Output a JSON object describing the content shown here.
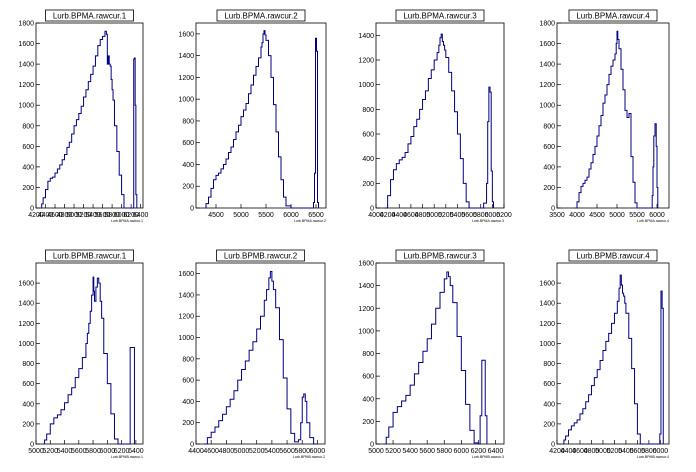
{
  "colors": {
    "line": "#000080",
    "axis": "#000000",
    "background": "#ffffff"
  },
  "chart_data": [
    {
      "type": "line",
      "title": "Lurb.BPMA.rawcur.1",
      "xaxis_label": "Lurb.BPMA.rawcur.1",
      "xlim": [
        4200,
        6450
      ],
      "ylim": [
        0,
        1800
      ],
      "xticks": [
        "4200",
        "4400",
        "4600",
        "4800",
        "5000",
        "5200",
        "5400",
        "5600",
        "5800",
        "6000",
        "6200",
        "6400"
      ],
      "yticks": [
        "0",
        "200",
        "400",
        "600",
        "800",
        "1000",
        "1200",
        "1400",
        "1600",
        "1800"
      ],
      "x": [
        4300,
        4320,
        4350,
        4400,
        4450,
        4500,
        4550,
        4600,
        4650,
        4700,
        4750,
        4800,
        4850,
        4900,
        4950,
        5000,
        5050,
        5100,
        5150,
        5200,
        5250,
        5300,
        5350,
        5400,
        5450,
        5500,
        5550,
        5600,
        5650,
        5680,
        5700,
        5720,
        5740,
        5760,
        5780,
        5800,
        5820,
        5850,
        5900,
        5950,
        6000,
        6050,
        6100,
        6150,
        6200,
        6240,
        6255,
        6270,
        6285,
        6300,
        6320
      ],
      "y": [
        0,
        40,
        100,
        180,
        260,
        290,
        300,
        340,
        380,
        420,
        470,
        520,
        590,
        640,
        720,
        800,
        860,
        920,
        990,
        1080,
        1150,
        1230,
        1300,
        1380,
        1480,
        1580,
        1640,
        1670,
        1720,
        1690,
        1400,
        1480,
        1400,
        1380,
        1250,
        1150,
        1050,
        800,
        550,
        320,
        130,
        0,
        0,
        0,
        0,
        0,
        1450,
        1460,
        1000,
        130,
        0
      ]
    },
    {
      "type": "line",
      "title": "Lurb.BPMA.rawcur.2",
      "xaxis_label": "Lurb.BPMA.rawcur.2",
      "xlim": [
        4100,
        6700
      ],
      "ylim": [
        0,
        1700
      ],
      "xticks": [
        "4500",
        "5000",
        "5500",
        "6000",
        "6500"
      ],
      "yticks": [
        "0",
        "200",
        "400",
        "600",
        "800",
        "1000",
        "1200",
        "1400",
        "1600"
      ],
      "x": [
        4280,
        4300,
        4350,
        4400,
        4450,
        4500,
        4550,
        4600,
        4650,
        4700,
        4750,
        4800,
        4850,
        4900,
        4950,
        5000,
        5050,
        5100,
        5150,
        5200,
        5250,
        5300,
        5350,
        5400,
        5420,
        5440,
        5460,
        5480,
        5500,
        5550,
        5600,
        5650,
        5700,
        5750,
        5800,
        5850,
        5900,
        6000,
        6100,
        6200,
        6300,
        6400,
        6450,
        6470,
        6490,
        6510,
        6530,
        6550
      ],
      "y": [
        0,
        40,
        100,
        180,
        260,
        300,
        320,
        360,
        400,
        450,
        510,
        560,
        630,
        700,
        760,
        840,
        900,
        960,
        1050,
        1130,
        1220,
        1300,
        1380,
        1480,
        1520,
        1600,
        1630,
        1590,
        1540,
        1400,
        1200,
        950,
        700,
        470,
        260,
        100,
        20,
        0,
        0,
        0,
        0,
        0,
        50,
        320,
        1560,
        1440,
        50,
        0
      ]
    },
    {
      "type": "line",
      "title": "Lurb.BPMA.rawcur.3",
      "xaxis_label": "Lurb.BPMA.rawcur.3",
      "xlim": [
        4000,
        6200
      ],
      "ylim": [
        0,
        1500
      ],
      "xticks": [
        "4000",
        "4200",
        "4400",
        "4600",
        "4800",
        "5000",
        "5200",
        "5400",
        "5600",
        "5800",
        "6000",
        "6200"
      ],
      "yticks": [
        "0",
        "200",
        "400",
        "600",
        "800",
        "1000",
        "1200",
        "1400"
      ],
      "x": [
        4150,
        4200,
        4250,
        4300,
        4350,
        4400,
        4450,
        4500,
        4550,
        4600,
        4650,
        4700,
        4750,
        4800,
        4850,
        4900,
        4950,
        5000,
        5050,
        5080,
        5100,
        5120,
        5140,
        5160,
        5180,
        5200,
        5250,
        5300,
        5350,
        5400,
        5450,
        5500,
        5550,
        5600,
        5650,
        5700,
        5750,
        5800,
        5850,
        5900,
        5920,
        5940,
        5960,
        5980,
        6000,
        6020
      ],
      "y": [
        0,
        100,
        230,
        310,
        360,
        390,
        410,
        450,
        520,
        580,
        660,
        720,
        800,
        880,
        950,
        1050,
        1120,
        1200,
        1260,
        1320,
        1380,
        1410,
        1350,
        1320,
        1280,
        1220,
        1100,
        950,
        780,
        600,
        400,
        200,
        50,
        0,
        0,
        0,
        0,
        0,
        40,
        200,
        700,
        980,
        940,
        300,
        50,
        0
      ]
    },
    {
      "type": "line",
      "title": "Lurb.BPMA.rawcur.4",
      "xaxis_label": "Lurb.BPMA.rawcur.4",
      "xlim": [
        3500,
        6300
      ],
      "ylim": [
        0,
        1800
      ],
      "xticks": [
        "3500",
        "4000",
        "4500",
        "5000",
        "5500",
        "6000"
      ],
      "yticks": [
        "0",
        "200",
        "400",
        "600",
        "800",
        "1000",
        "1200",
        "1400",
        "1600",
        "1800"
      ],
      "x": [
        3950,
        4000,
        4050,
        4100,
        4150,
        4200,
        4250,
        4300,
        4350,
        4400,
        4450,
        4500,
        4550,
        4600,
        4650,
        4700,
        4750,
        4800,
        4850,
        4900,
        4950,
        4980,
        5000,
        5020,
        5050,
        5100,
        5150,
        5200,
        5250,
        5300,
        5350,
        5400,
        5450,
        5500,
        5550,
        5600,
        5650,
        5700,
        5750,
        5800,
        5850,
        5880,
        5900,
        5920,
        5950,
        5980,
        6000,
        6020
      ],
      "y": [
        0,
        60,
        150,
        210,
        240,
        270,
        300,
        380,
        440,
        520,
        600,
        700,
        800,
        900,
        1020,
        1100,
        1200,
        1300,
        1380,
        1440,
        1500,
        1600,
        1720,
        1640,
        1550,
        1350,
        1150,
        950,
        880,
        920,
        500,
        250,
        50,
        0,
        0,
        0,
        0,
        0,
        0,
        0,
        0,
        120,
        400,
        700,
        820,
        600,
        200,
        0
      ]
    },
    {
      "type": "line",
      "title": "Lurb.BPMB.rawcur.1",
      "xaxis_label": "Lurb.BPMB.rawcur.1",
      "xlim": [
        5000,
        6500
      ],
      "ylim": [
        0,
        1800
      ],
      "xticks": [
        "5000",
        "5200",
        "5400",
        "5600",
        "5800",
        "6000",
        "6200",
        "6400"
      ],
      "yticks": [
        "0",
        "200",
        "400",
        "600",
        "800",
        "1000",
        "1200",
        "1400",
        "1600"
      ],
      "x": [
        5100,
        5120,
        5150,
        5200,
        5250,
        5300,
        5350,
        5400,
        5450,
        5500,
        5550,
        5600,
        5650,
        5700,
        5720,
        5740,
        5760,
        5780,
        5800,
        5810,
        5820,
        5840,
        5860,
        5880,
        5900,
        5920,
        5950,
        6000,
        6050,
        6100,
        6150,
        6200,
        6250,
        6280,
        6300,
        6320,
        6340,
        6360,
        6380
      ],
      "y": [
        0,
        40,
        100,
        200,
        260,
        290,
        340,
        410,
        490,
        560,
        660,
        750,
        860,
        1000,
        1100,
        1200,
        1320,
        1480,
        1660,
        1520,
        1420,
        1560,
        1650,
        1600,
        1420,
        1250,
        900,
        600,
        300,
        50,
        0,
        0,
        0,
        0,
        0,
        960,
        960,
        960,
        0
      ]
    },
    {
      "type": "line",
      "title": "Lurb.BPMB.rawcur.2",
      "xaxis_label": "Lurb.BPMB.rawcur.2",
      "xlim": [
        4400,
        6100
      ],
      "ylim": [
        0,
        1700
      ],
      "xticks": [
        "4400",
        "4600",
        "4800",
        "5000",
        "5200",
        "5400",
        "5600",
        "5800",
        "6000"
      ],
      "yticks": [
        "0",
        "200",
        "400",
        "600",
        "800",
        "1000",
        "1200",
        "1400",
        "1600"
      ],
      "x": [
        4500,
        4550,
        4600,
        4650,
        4700,
        4750,
        4800,
        4850,
        4900,
        4950,
        5000,
        5050,
        5100,
        5150,
        5200,
        5250,
        5300,
        5330,
        5360,
        5380,
        5400,
        5420,
        5450,
        5500,
        5550,
        5600,
        5650,
        5700,
        5750,
        5780,
        5800,
        5820,
        5840,
        5860,
        5900,
        5950,
        6000
      ],
      "y": [
        0,
        60,
        110,
        160,
        220,
        280,
        350,
        420,
        500,
        600,
        700,
        780,
        880,
        960,
        1080,
        1200,
        1350,
        1450,
        1560,
        1620,
        1530,
        1450,
        1280,
        980,
        620,
        330,
        100,
        20,
        40,
        200,
        440,
        470,
        400,
        200,
        60,
        0,
        0
      ]
    },
    {
      "type": "line",
      "title": "Lurb.BPMB.rawcur.3",
      "xaxis_label": "Lurb.BPMB.rawcur.3",
      "xlim": [
        5000,
        6500
      ],
      "ylim": [
        0,
        1600
      ],
      "xticks": [
        "5000",
        "5200",
        "5400",
        "5600",
        "5800",
        "6000",
        "6200",
        "6400"
      ],
      "yticks": [
        "0",
        "200",
        "400",
        "600",
        "800",
        "1000",
        "1200",
        "1400",
        "1600"
      ],
      "x": [
        5100,
        5120,
        5150,
        5200,
        5250,
        5300,
        5350,
        5400,
        5450,
        5500,
        5550,
        5600,
        5650,
        5700,
        5750,
        5800,
        5830,
        5850,
        5870,
        5900,
        5950,
        6000,
        6050,
        6100,
        6150,
        6200,
        6220,
        6240,
        6260,
        6280,
        6300
      ],
      "y": [
        0,
        60,
        150,
        280,
        330,
        380,
        430,
        520,
        620,
        720,
        820,
        930,
        1060,
        1200,
        1340,
        1460,
        1520,
        1480,
        1400,
        1250,
        950,
        650,
        350,
        120,
        10,
        0,
        250,
        740,
        740,
        250,
        0
      ]
    },
    {
      "type": "line",
      "title": "Lurb.BPMB.rawcur.4",
      "xaxis_label": "Lurb.BPMB.rawcur.4",
      "xlim": [
        4200,
        6150
      ],
      "ylim": [
        0,
        1800
      ],
      "xticks": [
        "4200",
        "4400",
        "4600",
        "4800",
        "5000",
        "5200",
        "5400",
        "5600",
        "5800",
        "6000"
      ],
      "yticks": [
        "0",
        "200",
        "400",
        "600",
        "800",
        "1000",
        "1200",
        "1400",
        "1600"
      ],
      "x": [
        4300,
        4320,
        4350,
        4400,
        4450,
        4500,
        4550,
        4600,
        4650,
        4700,
        4750,
        4800,
        4850,
        4900,
        4950,
        5000,
        5050,
        5100,
        5150,
        5200,
        5250,
        5280,
        5300,
        5320,
        5340,
        5360,
        5380,
        5400,
        5450,
        5500,
        5550,
        5600,
        5650,
        5700,
        5750,
        5800,
        5850,
        5900,
        5950,
        5990,
        6010,
        6030,
        6050
      ],
      "y": [
        0,
        40,
        80,
        140,
        180,
        210,
        240,
        300,
        350,
        420,
        490,
        580,
        660,
        740,
        830,
        930,
        1020,
        1100,
        1200,
        1300,
        1420,
        1550,
        1680,
        1580,
        1500,
        1470,
        1400,
        1300,
        1050,
        750,
        400,
        100,
        0,
        0,
        0,
        0,
        0,
        0,
        0,
        100,
        1520,
        1350,
        0
      ]
    }
  ]
}
